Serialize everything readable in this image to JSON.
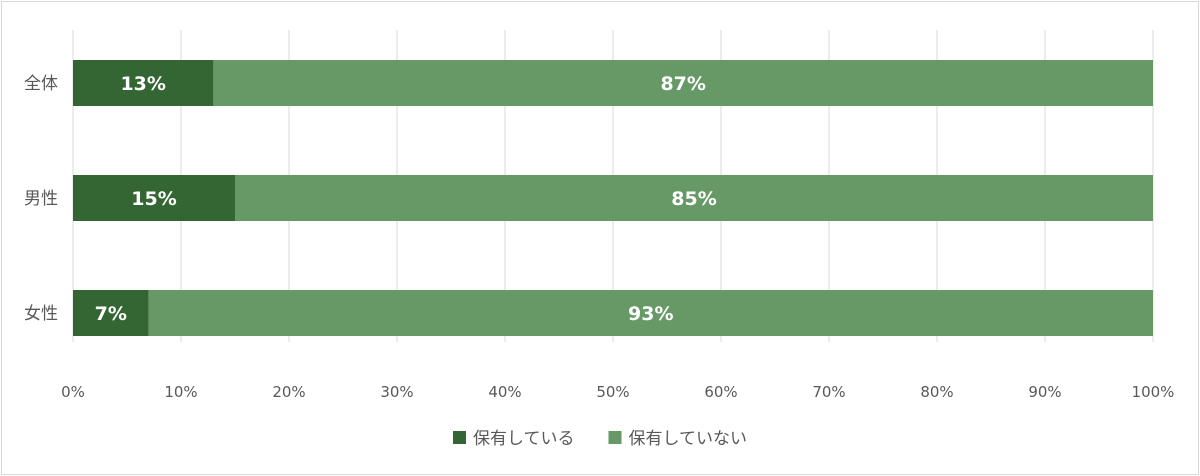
{
  "chart_data": {
    "type": "bar",
    "orientation": "horizontal",
    "stacked": true,
    "categories": [
      "全体",
      "男性",
      "女性"
    ],
    "series": [
      {
        "name": "保有している",
        "values": [
          13,
          15,
          7
        ],
        "labels": [
          "13%",
          "15%",
          "7%"
        ]
      },
      {
        "name": "保有していない",
        "values": [
          87,
          85,
          93
        ],
        "labels": [
          "87%",
          "85%",
          "93%"
        ]
      }
    ],
    "xlim": [
      0,
      100
    ],
    "xticks": [
      0,
      10,
      20,
      30,
      40,
      50,
      60,
      70,
      80,
      90,
      100
    ],
    "xtick_labels": [
      "0%",
      "10%",
      "20%",
      "30%",
      "40%",
      "50%",
      "60%",
      "70%",
      "80%",
      "90%",
      "100%"
    ],
    "grid": true,
    "legend_position": "bottom",
    "colors": {
      "series": [
        "#336633",
        "#669966"
      ]
    }
  }
}
